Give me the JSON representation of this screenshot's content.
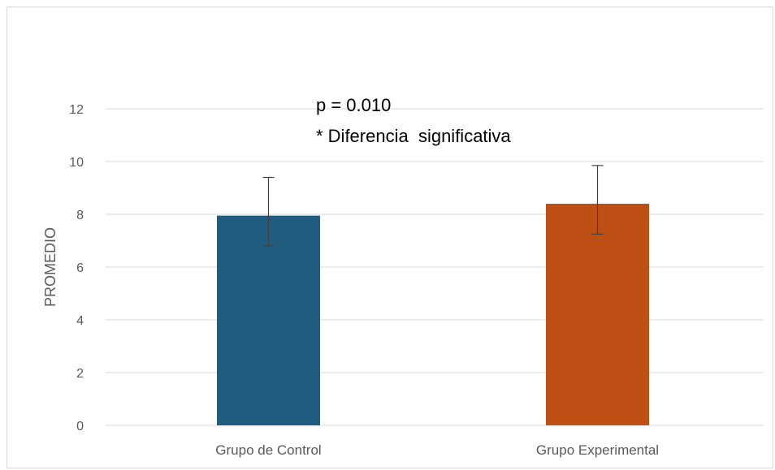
{
  "chart_data": {
    "type": "bar",
    "categories": [
      "Grupo de Control",
      "Grupo Experimental"
    ],
    "values": [
      7.95,
      8.4
    ],
    "error_bars": {
      "upper": [
        9.4,
        9.85
      ],
      "lower": [
        6.8,
        7.25
      ]
    },
    "colors": [
      "#1f5c7f",
      "#c04f15"
    ],
    "ylabel": "PROMEDIO",
    "xlabel": "",
    "ylim": [
      0,
      12
    ],
    "yticks": [
      0,
      2,
      4,
      6,
      8,
      10,
      12
    ],
    "grid": true,
    "legend": "none",
    "annotations": [
      "p = 0.010",
      "* Diferencia  significativa"
    ]
  }
}
